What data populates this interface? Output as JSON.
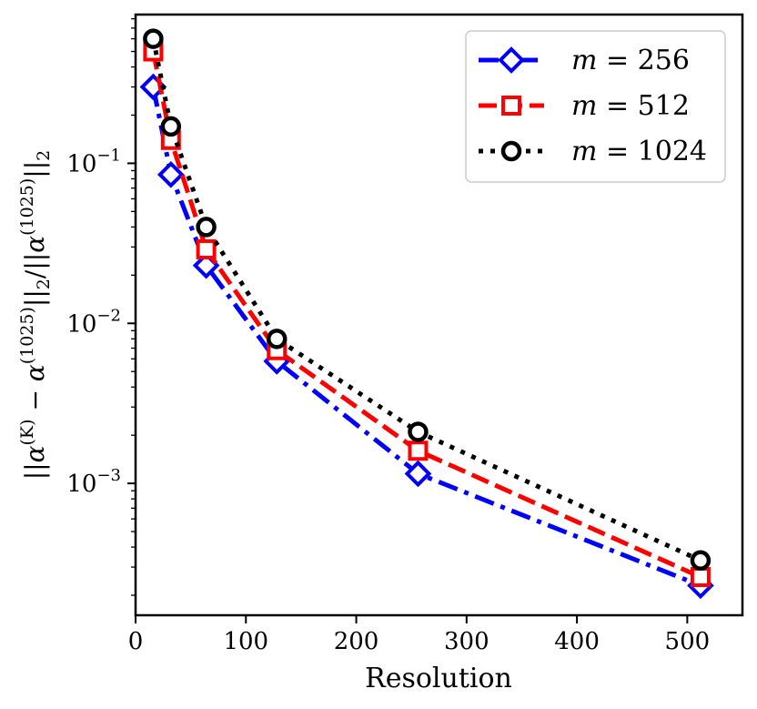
{
  "chart_data": {
    "type": "line",
    "title": "",
    "xlabel": "Resolution",
    "ylabel": "||α^(K) − α^(1025)||_2 / ||α^(1025)||_2",
    "ylabel_parts": {
      "open": "||",
      "alpha1": "α",
      "sup1": "(K)",
      "minus": " − ",
      "alpha2": "α",
      "sup2": "(1025)",
      "mid": "||",
      "sub": "2",
      "slash": "/||",
      "alpha3": "α",
      "sup3": "(1025)",
      "close": "||",
      "sub2": "2"
    },
    "x_scale": "linear",
    "y_scale": "log",
    "xlim": [
      0,
      550
    ],
    "ylim": [
      0.00015,
      0.85
    ],
    "x_ticks": [
      0,
      100,
      200,
      300,
      400,
      500
    ],
    "x_tick_labels": [
      "0",
      "100",
      "200",
      "300",
      "400",
      "500"
    ],
    "y_ticks": [
      0.001,
      0.01,
      0.1
    ],
    "y_tick_labels": [
      {
        "base": "10",
        "exp": "−3"
      },
      {
        "base": "10",
        "exp": "−2"
      },
      {
        "base": "10",
        "exp": "−1"
      }
    ],
    "legend_position": "top-right",
    "grid": false,
    "x": [
      16,
      32,
      64,
      128,
      256,
      512
    ],
    "series": [
      {
        "name": "m = 256",
        "legend_var": "m",
        "legend_eq": " = ",
        "legend_value": "256",
        "color": "#0000ff",
        "marker": "diamond",
        "linestyle": "dashdot",
        "values": [
          0.3,
          0.085,
          0.023,
          0.0058,
          0.00115,
          0.00023
        ]
      },
      {
        "name": "m = 512",
        "legend_var": "m",
        "legend_eq": " = ",
        "legend_value": "512",
        "color": "#ff0000",
        "marker": "square",
        "linestyle": "dashed",
        "values": [
          0.5,
          0.14,
          0.029,
          0.0068,
          0.0016,
          0.00026
        ]
      },
      {
        "name": "m = 1024",
        "legend_var": "m",
        "legend_eq": " = ",
        "legend_value": "1024",
        "color": "#000000",
        "marker": "circle",
        "linestyle": "dotted",
        "values": [
          0.6,
          0.17,
          0.04,
          0.008,
          0.0021,
          0.00033
        ]
      }
    ]
  }
}
